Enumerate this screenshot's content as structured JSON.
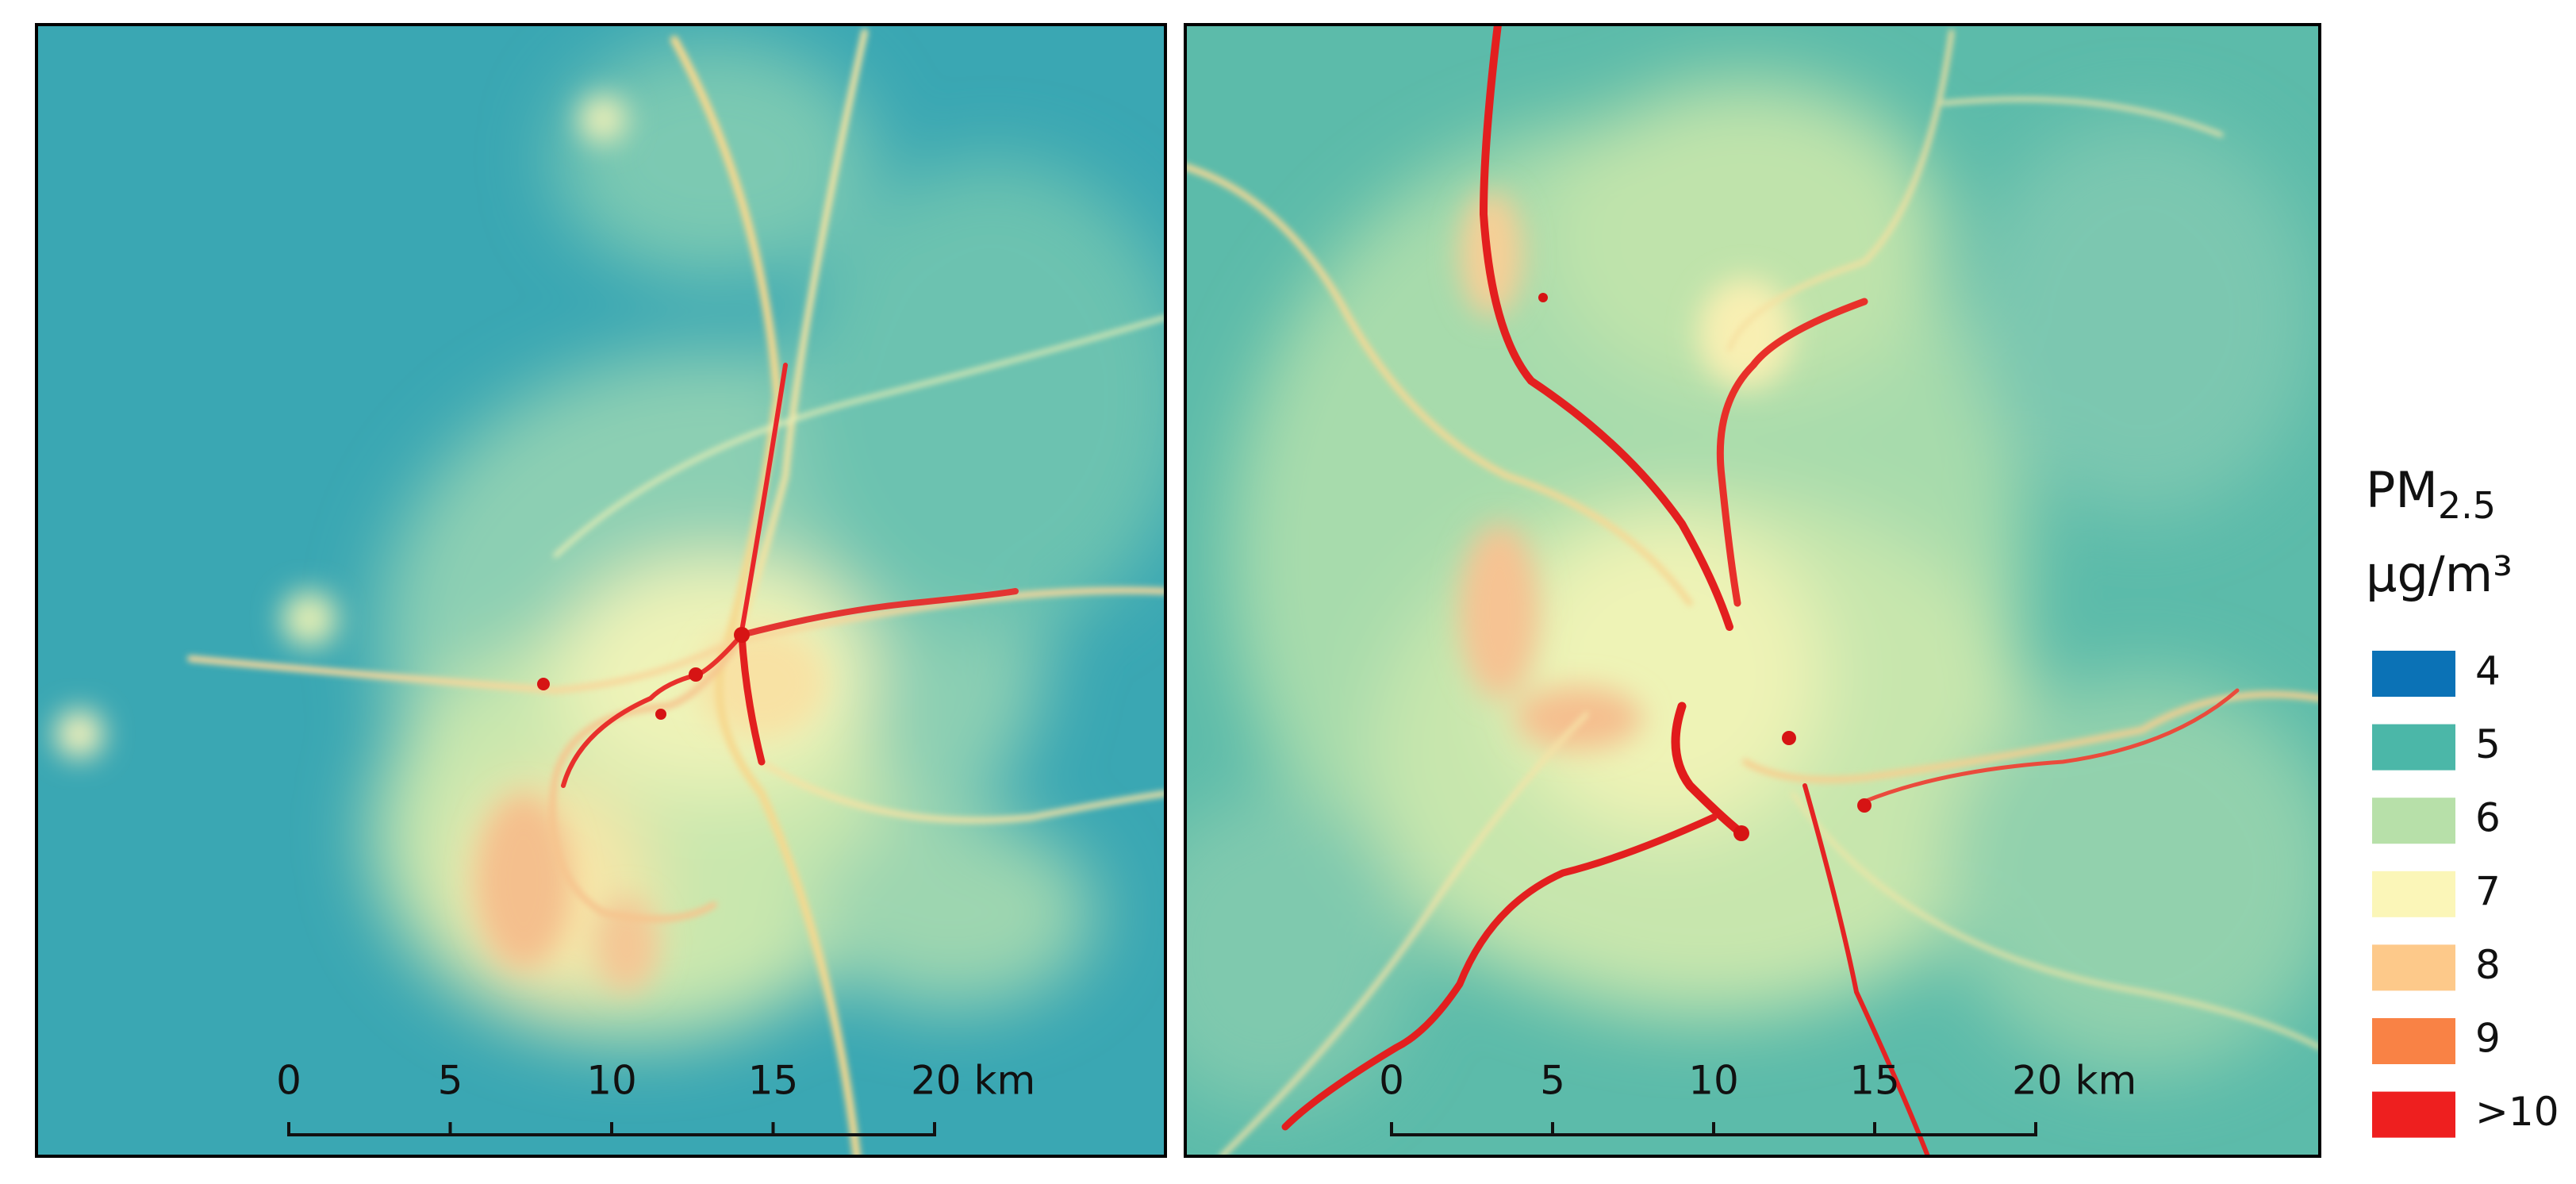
{
  "panels": [
    {
      "scale_bar": {
        "labels": [
          "0",
          "5",
          "10",
          "15",
          "20 km"
        ]
      }
    },
    {
      "scale_bar": {
        "labels": [
          "0",
          "5",
          "10",
          "15",
          "20 km"
        ]
      }
    }
  ],
  "legend": {
    "title": "PM",
    "title_subscript": "2.5",
    "unit": "µg/m³",
    "items": [
      {
        "label": "4",
        "color": "#0b72b6"
      },
      {
        "label": "5",
        "color": "#4bb7a8"
      },
      {
        "label": "6",
        "color": "#b7e0a9"
      },
      {
        "label": "7",
        "color": "#fbf6b8"
      },
      {
        "label": "8",
        "color": "#fdc98a"
      },
      {
        "label": "9",
        "color": "#f98245"
      },
      {
        "label": ">10",
        "color": "#ee1f1f"
      }
    ]
  }
}
